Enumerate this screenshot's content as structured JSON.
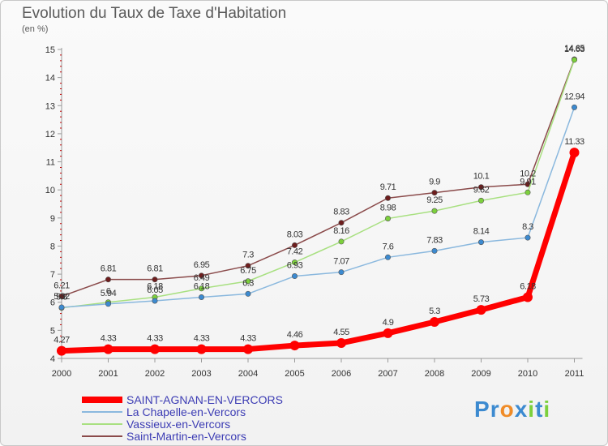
{
  "chart_data": {
    "type": "line",
    "title": "Evolution du Taux de Taxe d'Habitation",
    "subtitle": "(en %)",
    "x": [
      "2000",
      "2001",
      "2002",
      "2003",
      "2004",
      "2005",
      "2006",
      "2007",
      "2008",
      "2009",
      "2010",
      "2011"
    ],
    "y_ticks": [
      "4",
      "5",
      "6",
      "7",
      "8",
      "9",
      "10",
      "11",
      "12",
      "13",
      "14",
      "15"
    ],
    "ylim": [
      4,
      15
    ],
    "grid": false,
    "legend_position": "bottom-left",
    "series": [
      {
        "name": "SAINT-AGNAN-EN-VERCORS",
        "color": "#ff0000",
        "marker": "#ff0000",
        "values": [
          4.27,
          4.33,
          4.33,
          4.33,
          4.33,
          4.46,
          4.55,
          4.9,
          5.3,
          5.73,
          6.18,
          11.33
        ],
        "labels": [
          "4.27",
          "4.33",
          "4.33",
          "4.33",
          "4.33",
          "4.46",
          "4.55",
          "4.9",
          "5.3",
          "5.73",
          "6.18",
          "11.33"
        ]
      },
      {
        "name": "La Chapelle-en-Vercors",
        "color": "#8ab8de",
        "marker": "#3c8ad0",
        "values": [
          5.82,
          5.94,
          6.05,
          6.18,
          6.3,
          6.93,
          7.07,
          7.6,
          7.83,
          8.14,
          8.3,
          12.94
        ],
        "labels": [
          "5.82",
          "5.94",
          "6.05",
          "6.18",
          "6.3",
          "6.93",
          "7.07",
          "7.6",
          "7.83",
          "8.14",
          "8.3",
          "12.94"
        ]
      },
      {
        "name": "Vassieux-en-Vercors",
        "color": "#a8e080",
        "marker": "#7cd03c",
        "values": [
          5.8,
          6.0,
          6.18,
          6.49,
          6.75,
          7.42,
          8.16,
          8.98,
          9.25,
          9.62,
          9.91,
          14.63
        ],
        "labels": [
          "5.8",
          "6",
          "6.18",
          "6.49",
          "6.75",
          "7.42",
          "8.16",
          "8.98",
          "9.25",
          "9.62",
          "9.91",
          "14.63"
        ]
      },
      {
        "name": "Saint-Martin-en-Vercors",
        "color": "#8a4a4a",
        "marker": "#6e1e1e",
        "values": [
          6.21,
          6.81,
          6.81,
          6.95,
          7.3,
          8.03,
          8.83,
          9.71,
          9.9,
          10.1,
          10.2,
          14.65
        ],
        "labels": [
          "6.21",
          "6.81",
          "6.81",
          "6.95",
          "7.3",
          "8.03",
          "8.83",
          "9.71",
          "9.9",
          "10.1",
          "10.2",
          "14.65"
        ]
      }
    ]
  },
  "logo": {
    "letters": [
      "P",
      "r",
      "o",
      "x",
      "i",
      "t",
      "i"
    ],
    "colors": [
      "#3c8ad0",
      "#3c8ad0",
      "#f08c28",
      "#3c8ad0",
      "#7cd03c",
      "#3c8ad0",
      "#7cd03c"
    ]
  }
}
